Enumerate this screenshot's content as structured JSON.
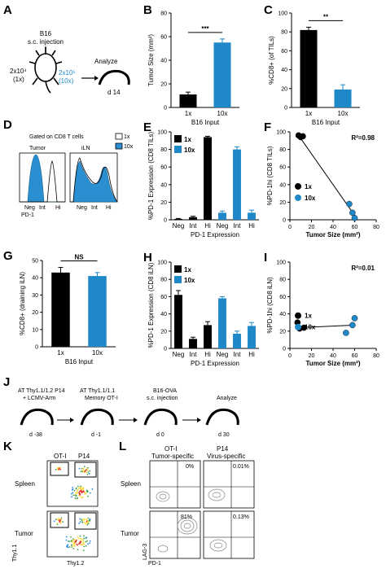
{
  "panels": {
    "A": {
      "letter": "A",
      "injection_title_1": "B16",
      "injection_title_2": "s.c. injection",
      "dose_low_1": "2x10⁴",
      "dose_low_2": "(1x)",
      "dose_high_1": "2x10⁵",
      "dose_high_2": "(10x)",
      "analyze": "Analyze",
      "day": "d 14",
      "accent": "#1e88c8"
    },
    "D": {
      "letter": "D",
      "gate_title": "Gated on CD8 T cells",
      "tissue_1": "Tumor",
      "tissue_2": "iLN",
      "legend_1x": "1x",
      "legend_10x": "10x",
      "axis_ticks": [
        "Neg",
        "Int",
        "Hi"
      ],
      "xlabel": "PD-1"
    },
    "J": {
      "letter": "J",
      "steps": [
        {
          "line1": "AT Thy1.1/1.2 P14",
          "line2": "+ LCMV-Arm",
          "day": "d -38"
        },
        {
          "line1": "AT Thy1.1/1.1",
          "line2": "Memory OT-I",
          "day": "d -1"
        },
        {
          "line1": "B16-OVA",
          "line2": "s.c. injection",
          "day": "d 0"
        },
        {
          "line1": "",
          "line2": "Analyze",
          "day": "d 30"
        }
      ]
    },
    "K": {
      "letter": "K",
      "col_1": "OT-I",
      "col_2": "P14",
      "row_1": "Spleen",
      "row_2": "Tumor",
      "xlabel": "Thy1.2",
      "ylabel": "Thy1.1"
    },
    "L": {
      "letter": "L",
      "col_1_a": "OT-I",
      "col_1_b": "Tumor-specific",
      "col_2_a": "P14",
      "col_2_b": "Virus-specific",
      "row_1": "Spleen",
      "row_2": "Tumor",
      "q": [
        "0%",
        "0.01%",
        "81%",
        "0.13%"
      ],
      "xlabel": "PD-1",
      "ylabel": "LAG-3"
    }
  },
  "colors": {
    "black_group": "#000000",
    "blue_group": "#1e88c8",
    "hist_fill": "#2a8fd0"
  },
  "chart_data": [
    {
      "id": "B",
      "letter": "B",
      "type": "bar",
      "categories": [
        "1x",
        "10x"
      ],
      "values": [
        11,
        55
      ],
      "errors": [
        2,
        3
      ],
      "ylabel": "Tumor Size (mm²)",
      "xlabel": "B16 Input",
      "ylim": [
        0,
        80
      ],
      "yticks": [
        0,
        20,
        40,
        60,
        80
      ],
      "significance": "***"
    },
    {
      "id": "C",
      "letter": "C",
      "type": "bar",
      "categories": [
        "1x",
        "10x"
      ],
      "values": [
        82,
        19
      ],
      "errors": [
        3,
        5
      ],
      "ylabel": "%CD8+ (of TILs)",
      "xlabel": "B16 Input",
      "ylim": [
        0,
        100
      ],
      "yticks": [
        0,
        20,
        40,
        60,
        80,
        100
      ],
      "significance": "**"
    },
    {
      "id": "E",
      "letter": "E",
      "type": "bar",
      "categories": [
        "Neg",
        "Int",
        "Hi",
        "Neg",
        "Int",
        "Hi"
      ],
      "values": [
        1,
        3,
        94,
        8,
        80,
        8
      ],
      "errors": [
        0.5,
        1,
        1,
        2,
        3,
        3
      ],
      "groups": [
        "1x",
        "1x",
        "1x",
        "10x",
        "10x",
        "10x"
      ],
      "series": [
        {
          "name": "1x"
        },
        {
          "name": "10x"
        }
      ],
      "ylabel": "%PD-1 Expression (CD8 TILs)",
      "xlabel": "PD-1 Expression",
      "ylim": [
        0,
        100
      ],
      "yticks": [
        0,
        20,
        40,
        60,
        80,
        100
      ]
    },
    {
      "id": "F",
      "letter": "F",
      "type": "scatter",
      "series": [
        {
          "name": "1x",
          "points": [
            [
              8,
              96
            ],
            [
              10,
              94
            ],
            [
              12,
              95
            ]
          ]
        },
        {
          "name": "10x",
          "points": [
            [
              55,
              18
            ],
            [
              58,
              8
            ],
            [
              60,
              2
            ]
          ]
        }
      ],
      "fit": [
        [
          8,
          96
        ],
        [
          60,
          5
        ]
      ],
      "r2": "R²=0.98",
      "ylabel": "%PD-1hi (CD8 TILs)",
      "xlabel": "Tumor Size (mm²)",
      "xlim": [
        0,
        80
      ],
      "ylim": [
        0,
        100
      ],
      "xticks": [
        0,
        20,
        40,
        60,
        80
      ],
      "yticks": [
        0,
        20,
        40,
        60,
        80,
        100
      ]
    },
    {
      "id": "G",
      "letter": "G",
      "type": "bar",
      "categories": [
        "1x",
        "10x"
      ],
      "values": [
        43,
        41
      ],
      "errors": [
        3,
        2
      ],
      "ylabel": "%CD8+ (draining iLN)",
      "xlabel": "B16 Input",
      "ylim": [
        0,
        50
      ],
      "yticks": [
        0,
        10,
        20,
        30,
        40,
        50
      ],
      "significance": "NS"
    },
    {
      "id": "H",
      "letter": "H",
      "type": "bar",
      "categories": [
        "Neg",
        "Int",
        "Hi",
        "Neg",
        "Int",
        "Hi"
      ],
      "values": [
        62,
        11,
        27,
        58,
        17,
        26
      ],
      "errors": [
        5,
        2,
        4,
        2,
        3,
        4
      ],
      "groups": [
        "1x",
        "1x",
        "1x",
        "10x",
        "10x",
        "10x"
      ],
      "series": [
        {
          "name": "1x"
        },
        {
          "name": "10x"
        }
      ],
      "ylabel": "%PD-1 Expression (CD8 iLN)",
      "xlabel": "PD-1 Expression",
      "ylim": [
        0,
        100
      ],
      "yticks": [
        0,
        20,
        40,
        60,
        80,
        100
      ]
    },
    {
      "id": "I",
      "letter": "I",
      "type": "scatter",
      "series": [
        {
          "name": "1x",
          "points": [
            [
              7,
              30
            ],
            [
              9,
              23
            ],
            [
              13,
              24
            ]
          ]
        },
        {
          "name": "10x",
          "points": [
            [
              52,
              18
            ],
            [
              58,
              27
            ],
            [
              60,
              35
            ]
          ]
        }
      ],
      "fit": [
        [
          7,
          24
        ],
        [
          60,
          27
        ]
      ],
      "r2": "R²=0.01",
      "ylabel": "%PD-1hi (CD8 iLN)",
      "xlabel": "Tumor Size (mm²)",
      "xlim": [
        0,
        80
      ],
      "ylim": [
        0,
        100
      ],
      "xticks": [
        0,
        20,
        40,
        60,
        80
      ],
      "yticks": [
        0,
        20,
        40,
        60,
        80,
        100
      ]
    }
  ]
}
